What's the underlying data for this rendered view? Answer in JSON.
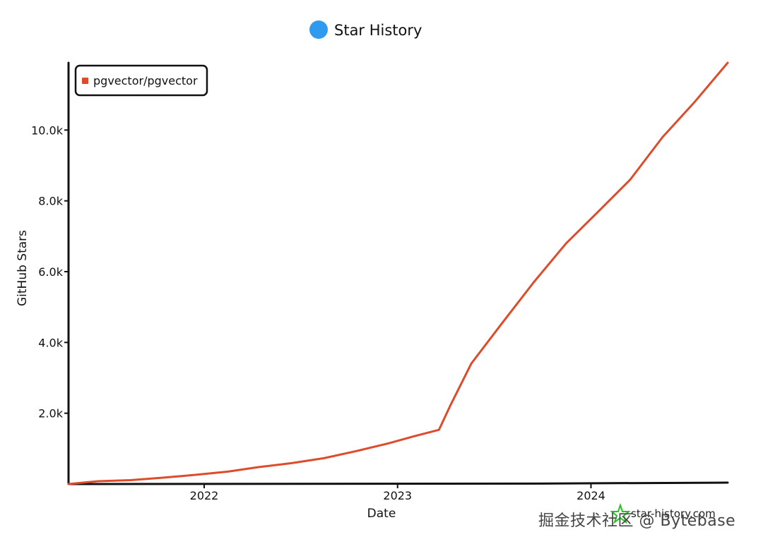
{
  "chart_data": {
    "type": "line",
    "title": "Star History",
    "xlabel": "Date",
    "ylabel": "GitHub Stars",
    "xlim": [
      "2021-04-20",
      "2024-09-15"
    ],
    "ylim": [
      0,
      11900
    ],
    "x_ticks": [
      "2022",
      "2023",
      "2024"
    ],
    "x_tick_dates": [
      "2022-01-01",
      "2023-01-01",
      "2024-01-01"
    ],
    "y_ticks": [
      2000,
      4000,
      6000,
      8000,
      10000
    ],
    "y_tick_labels": [
      "2.0k",
      "4.0k",
      "6.0k",
      "8.0k",
      "10.0k"
    ],
    "grid": false,
    "legend": "top-left",
    "series": [
      {
        "name": "pgvector/pgvector",
        "color": "#dd4b2a",
        "points": [
          {
            "date": "2021-04-20",
            "stars": 0
          },
          {
            "date": "2021-06-15",
            "stars": 80
          },
          {
            "date": "2021-08-15",
            "stars": 110
          },
          {
            "date": "2021-10-15",
            "stars": 180
          },
          {
            "date": "2021-12-15",
            "stars": 260
          },
          {
            "date": "2022-02-15",
            "stars": 350
          },
          {
            "date": "2022-04-15",
            "stars": 480
          },
          {
            "date": "2022-06-15",
            "stars": 590
          },
          {
            "date": "2022-08-15",
            "stars": 730
          },
          {
            "date": "2022-10-15",
            "stars": 930
          },
          {
            "date": "2022-12-15",
            "stars": 1150
          },
          {
            "date": "2023-02-01",
            "stars": 1350
          },
          {
            "date": "2023-03-20",
            "stars": 1530
          },
          {
            "date": "2023-04-10",
            "stars": 2200
          },
          {
            "date": "2023-05-20",
            "stars": 3400
          },
          {
            "date": "2023-07-15",
            "stars": 4500
          },
          {
            "date": "2023-09-15",
            "stars": 5700
          },
          {
            "date": "2023-11-15",
            "stars": 6800
          },
          {
            "date": "2024-01-15",
            "stars": 7700
          },
          {
            "date": "2024-03-15",
            "stars": 8600
          },
          {
            "date": "2024-05-15",
            "stars": 9800
          },
          {
            "date": "2024-07-15",
            "stars": 10800
          },
          {
            "date": "2024-09-15",
            "stars": 11900
          }
        ]
      }
    ]
  },
  "watermark": {
    "site": "star-history.com",
    "overlay": "掘金技术社区 @ Bytebase"
  },
  "colors": {
    "title_dot": "#2f9bf0",
    "line": "#dd4b2a",
    "watermark_logo": "#22c322"
  }
}
